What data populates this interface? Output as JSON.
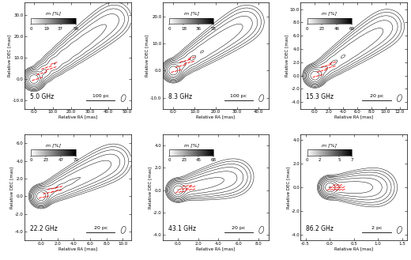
{
  "chart_data": [
    {
      "type": "contour",
      "title": "5.0 GHz",
      "x_label": "Relative RA [mas]",
      "y_label": "Relative DEC [mas]",
      "xlim": [
        -5.0,
        52.0
      ],
      "ylim": [
        -14.0,
        36.0
      ],
      "xticks": [
        0.0,
        10.0,
        20.0,
        30.0,
        40.0,
        50.0
      ],
      "yticks": [
        -10.0,
        0.0,
        10.0,
        20.0,
        30.0
      ],
      "colorbar_label": "m [%]",
      "colorbar_range": [
        0,
        56
      ],
      "colorbar_ticks": [
        0,
        19,
        37,
        56
      ],
      "scale_bar": "100 pc"
    },
    {
      "type": "contour",
      "title": "8.3 GHz",
      "x_label": "Relative RA [mas]",
      "y_label": "Relative DEC [mas]",
      "xlim": [
        -5.0,
        45.0
      ],
      "ylim": [
        -14.0,
        25.0
      ],
      "xticks": [
        0.0,
        10.0,
        20.0,
        30.0,
        40.0
      ],
      "yticks": [
        -10.0,
        0.0,
        10.0,
        20.0
      ],
      "colorbar_label": "m [%]",
      "colorbar_range": [
        0,
        55
      ],
      "colorbar_ticks": [
        0,
        18,
        36,
        55
      ],
      "scale_bar": "100 pc"
    },
    {
      "type": "contour",
      "title": "15.3 GHz",
      "x_label": "Relative RA [mas]",
      "y_label": "Relative DEC [mas]",
      "xlim": [
        -2.0,
        13.0
      ],
      "ylim": [
        -5.0,
        11.0
      ],
      "xticks": [
        0.0,
        2.0,
        4.0,
        6.0,
        8.0,
        10.0,
        12.0
      ],
      "yticks": [
        -4.0,
        -2.0,
        0.0,
        2.0,
        4.0,
        6.0,
        8.0,
        10.0
      ],
      "colorbar_label": "m [%]",
      "colorbar_range": [
        0,
        69
      ],
      "colorbar_ticks": [
        0,
        23,
        46,
        69
      ],
      "scale_bar": "20 pc"
    },
    {
      "type": "contour",
      "title": "22.2 GHz",
      "x_label": "Relative RA [mas]",
      "y_label": "Relative DEC [mas]",
      "xlim": [
        -2.0,
        11.0
      ],
      "ylim": [
        -5.0,
        7.0
      ],
      "xticks": [
        0.0,
        2.0,
        4.0,
        6.0,
        8.0,
        10.0
      ],
      "yticks": [
        -4.0,
        -2.0,
        0.0,
        2.0,
        4.0,
        6.0
      ],
      "colorbar_label": "m [%]",
      "colorbar_range": [
        0,
        70
      ],
      "colorbar_ticks": [
        0,
        23,
        47,
        70
      ],
      "scale_bar": "20 pc"
    },
    {
      "type": "contour",
      "title": "43.1 GHz",
      "x_label": "Relative RA [mas]",
      "y_label": "Relative DEC [mas]",
      "xlim": [
        -1.5,
        9.0
      ],
      "ylim": [
        -4.5,
        5.0
      ],
      "xticks": [
        0.0,
        2.0,
        4.0,
        6.0,
        8.0
      ],
      "yticks": [
        -4.0,
        -2.0,
        0.0,
        2.0,
        4.0
      ],
      "colorbar_label": "m [%]",
      "colorbar_range": [
        0,
        68
      ],
      "colorbar_ticks": [
        0,
        23,
        45,
        68
      ],
      "scale_bar": "20 pc"
    },
    {
      "type": "contour",
      "title": "86.2 GHz",
      "x_label": "Relative RA [mas]",
      "y_label": "Relative DEC [mas]",
      "xlim": [
        -0.6,
        1.6
      ],
      "ylim": [
        -4.5,
        4.5
      ],
      "xticks": [
        -0.5,
        0.0,
        0.5,
        1.0,
        1.5
      ],
      "yticks": [
        -4.0,
        -2.0,
        0.0,
        2.0,
        4.0
      ],
      "colorbar_label": "m [%]",
      "colorbar_range": [
        0,
        7
      ],
      "colorbar_ticks": [
        0,
        2,
        5,
        7
      ],
      "scale_bar": "2 pc"
    }
  ]
}
